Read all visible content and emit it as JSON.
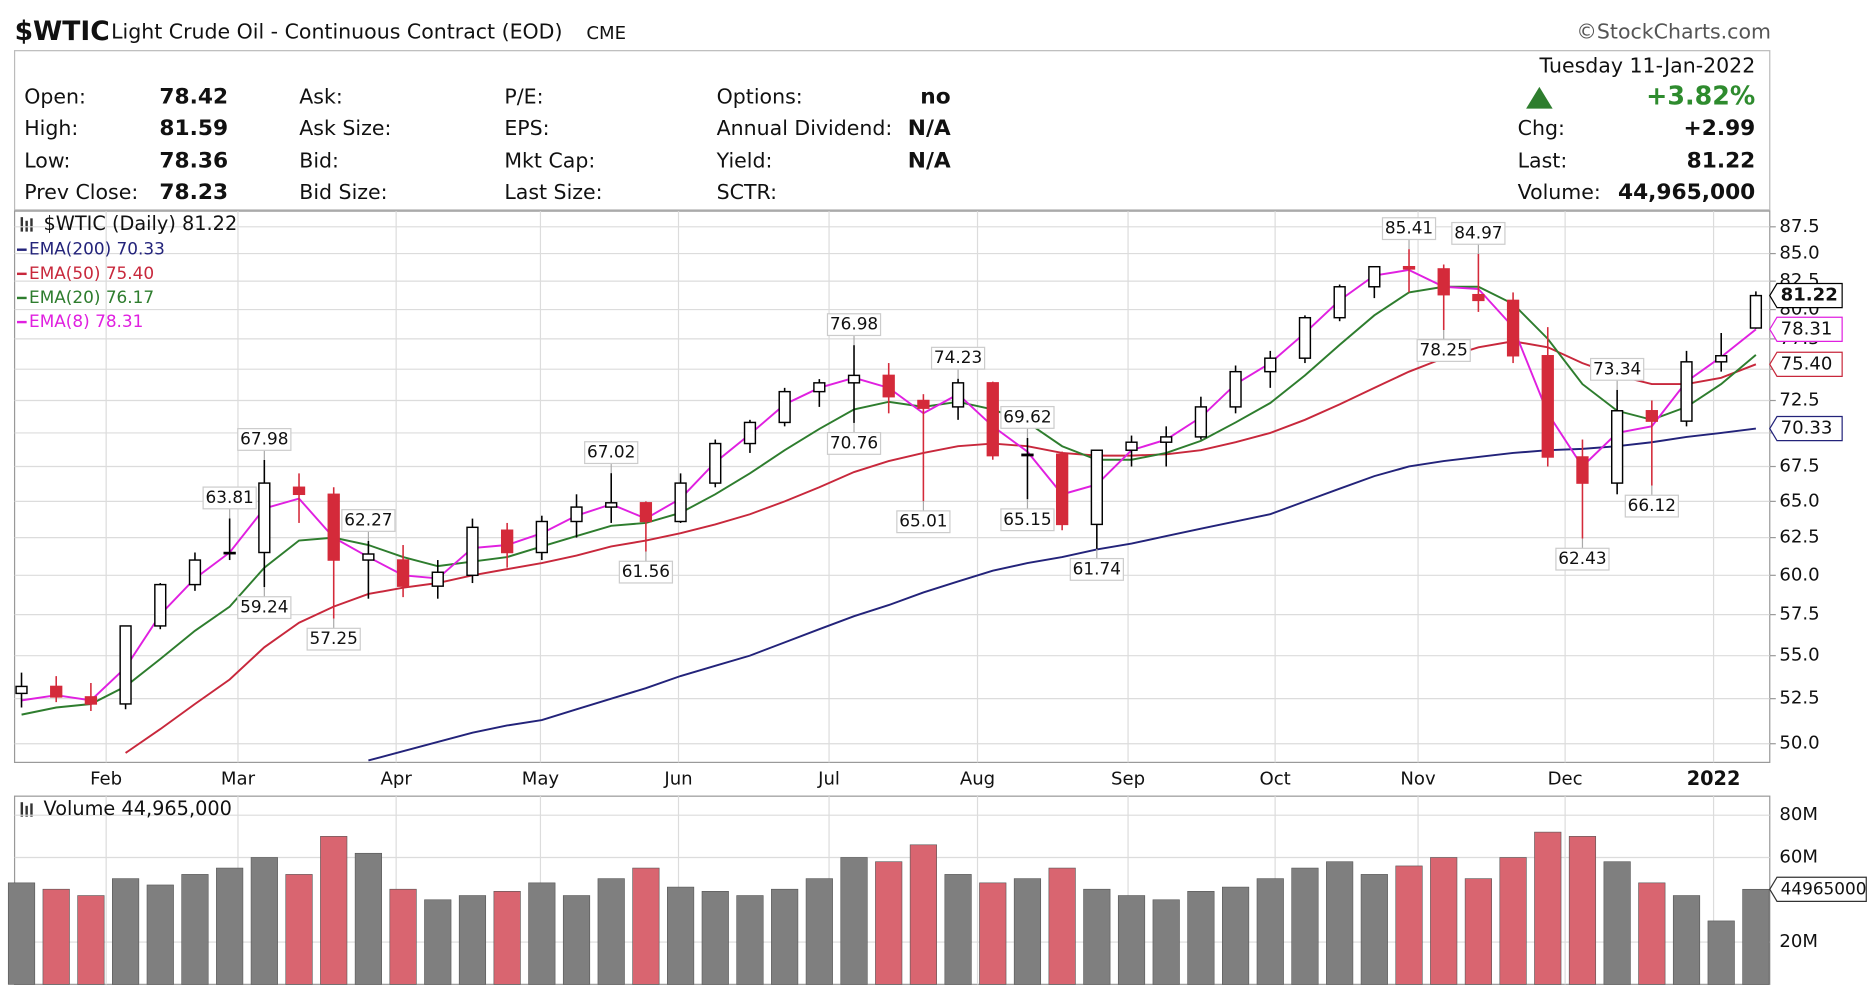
{
  "header": {
    "symbol": "$WTIC",
    "name": "Light Crude Oil - Continuous Contract (EOD)",
    "exchange": "CME",
    "credit": "©StockCharts.com"
  },
  "quote": {
    "columns": [
      [
        {
          "label": "Open:",
          "value": "78.42"
        },
        {
          "label": "High:",
          "value": "81.59"
        },
        {
          "label": "Low:",
          "value": "78.36"
        },
        {
          "label": "Prev Close:",
          "value": "78.23"
        }
      ],
      [
        {
          "label": "Ask:"
        },
        {
          "label": "Ask Size:"
        },
        {
          "label": "Bid:"
        },
        {
          "label": "Bid Size:"
        }
      ],
      [
        {
          "label": "P/E:"
        },
        {
          "label": "EPS:"
        },
        {
          "label": "Mkt Cap:"
        },
        {
          "label": "Last Size:"
        }
      ],
      [
        {
          "label": "Options:",
          "value": "no"
        },
        {
          "label": "Annual Dividend:",
          "value": "N/A"
        },
        {
          "label": "Yield:",
          "value": "N/A"
        },
        {
          "label": "SCTR:"
        }
      ]
    ],
    "date": "Tuesday  11-Jan-2022",
    "change_pct": "+3.82%",
    "chg_label": "Chg:",
    "chg": "+2.99",
    "last_label": "Last:",
    "last": "81.22",
    "volume_label": "Volume:",
    "volume": "44,965,000"
  },
  "chart_data": [
    {
      "type": "candlestick",
      "title": "$WTIC (Daily) 81.22",
      "log": true,
      "grid": true,
      "up_color": "#000000",
      "down_color": "#d42a3a",
      "x": [
        1,
        6,
        11,
        16,
        21,
        26,
        31,
        36,
        41,
        46,
        51,
        56,
        61,
        66,
        71,
        76,
        81,
        86,
        91,
        96,
        101,
        106,
        111,
        116,
        121,
        126,
        131,
        136,
        141,
        146,
        151,
        156,
        161,
        166,
        171,
        176,
        181,
        186,
        191,
        196,
        201,
        206,
        211,
        216,
        221,
        226,
        231,
        236,
        241,
        246,
        251
      ],
      "open": [
        52.8,
        53.2,
        52.6,
        52.2,
        56.8,
        59.4,
        61.5,
        61.5,
        66,
        65.5,
        61,
        61,
        59.3,
        60,
        63,
        61.5,
        63.6,
        64.6,
        64.9,
        63.6,
        66.3,
        69.2,
        70.8,
        73.2,
        73.9,
        74.5,
        72.5,
        72,
        73.9,
        68.3,
        68.4,
        63.4,
        68.7,
        69.3,
        69.7,
        72,
        74.8,
        75.9,
        79.3,
        82,
        83.8,
        83.6,
        81.3,
        80.8,
        76.1,
        68.2,
        66.3,
        71.7,
        70.9,
        75.6,
        78.42
      ],
      "high": [
        54,
        53.8,
        53.4,
        56.8,
        59.5,
        61.5,
        63.81,
        67.98,
        67,
        66,
        62.27,
        62,
        61,
        63.8,
        63.5,
        64,
        65.5,
        67.02,
        65,
        67,
        69.5,
        71,
        73.5,
        74.2,
        76.98,
        75.5,
        73,
        74.23,
        74,
        69.62,
        68.6,
        68.7,
        69.8,
        70.5,
        72.8,
        75.3,
        76.5,
        79.5,
        82.2,
        83.5,
        85.41,
        84,
        84.97,
        81.5,
        78.5,
        69.5,
        73.34,
        72.5,
        76.5,
        78,
        81.59
      ],
      "low": [
        52,
        52.3,
        51.8,
        51.9,
        56.6,
        59,
        61,
        59.24,
        63.5,
        57.25,
        58.5,
        58.6,
        58.5,
        59.5,
        60.5,
        61,
        62.5,
        63.5,
        61.56,
        63.5,
        66,
        68.5,
        70.5,
        72,
        70.76,
        71.5,
        65.01,
        71,
        68,
        65.15,
        63,
        61.74,
        67.5,
        67.5,
        69.5,
        71.5,
        73.5,
        75.5,
        79,
        81,
        81.5,
        78.25,
        79.8,
        75.5,
        67.5,
        62.43,
        65.5,
        66.12,
        70.5,
        74.8,
        78.36
      ],
      "close": [
        53.2,
        52.6,
        52.2,
        56.8,
        59.4,
        61,
        61.5,
        66.3,
        65.5,
        61,
        61.4,
        59.3,
        60.2,
        63.2,
        61.5,
        63.6,
        64.6,
        64.9,
        63.6,
        66.3,
        69.2,
        70.8,
        73.2,
        73.9,
        74.5,
        72.8,
        71.9,
        73.9,
        68.3,
        68.4,
        63.4,
        68.7,
        69.3,
        69.7,
        72,
        74.8,
        75.9,
        79.3,
        82,
        83.8,
        83.6,
        81.3,
        80.8,
        76.1,
        68.2,
        66.3,
        71.7,
        70.9,
        75.6,
        76.1,
        81.22
      ],
      "series": [
        {
          "name": "EMA(200) 70.33",
          "last_label": "70.33",
          "color": "#23237a",
          "values": [
            null,
            null,
            null,
            null,
            null,
            null,
            null,
            null,
            null,
            null,
            49.1,
            49.6,
            50.1,
            50.6,
            51.0,
            51.3,
            51.9,
            52.5,
            53.1,
            53.8,
            54.4,
            55.0,
            55.8,
            56.6,
            57.4,
            58.1,
            58.9,
            59.6,
            60.3,
            60.8,
            61.2,
            61.7,
            62.1,
            62.6,
            63.1,
            63.6,
            64.1,
            65.0,
            65.9,
            66.8,
            67.5,
            67.9,
            68.2,
            68.5,
            68.7,
            68.8,
            69.0,
            69.3,
            69.7,
            70.0,
            70.33
          ]
        },
        {
          "name": "EMA(50) 75.40",
          "last_label": "75.40",
          "color": "#c8283c",
          "values": [
            null,
            null,
            null,
            49.5,
            50.8,
            52.2,
            53.6,
            55.5,
            57.0,
            58.0,
            58.8,
            59.2,
            59.5,
            60.0,
            60.4,
            60.8,
            61.3,
            61.9,
            62.3,
            62.8,
            63.4,
            64.1,
            65.0,
            66.0,
            67.1,
            67.9,
            68.5,
            69.0,
            69.2,
            69.0,
            68.5,
            68.3,
            68.3,
            68.4,
            68.7,
            69.3,
            70.0,
            71.0,
            72.2,
            73.5,
            74.8,
            75.9,
            76.8,
            77.3,
            76.8,
            75.5,
            74.5,
            73.8,
            73.8,
            74.3,
            75.4
          ]
        },
        {
          "name": "EMA(20) 76.17",
          "color": "#2e7d2e",
          "values": [
            51.6,
            52.0,
            52.2,
            53.2,
            54.8,
            56.5,
            58.0,
            60.5,
            62.3,
            62.5,
            62.0,
            61.2,
            60.6,
            60.9,
            61.2,
            61.9,
            62.6,
            63.3,
            63.5,
            64.2,
            65.5,
            67.0,
            68.7,
            70.3,
            71.8,
            72.4,
            72.0,
            72.4,
            71.8,
            70.8,
            69.0,
            68.0,
            68.0,
            68.5,
            69.4,
            70.8,
            72.3,
            74.5,
            77.0,
            79.5,
            81.5,
            82.0,
            82.0,
            80.5,
            77.5,
            73.8,
            71.7,
            71.0,
            72.0,
            73.8,
            76.17
          ]
        },
        {
          "name": "EMA(8) 78.31",
          "last_label": "78.31",
          "color": "#e020e0",
          "values": [
            52.4,
            52.7,
            52.4,
            54.3,
            57.5,
            59.8,
            61.5,
            64.5,
            65.2,
            62.5,
            61.2,
            60.0,
            59.8,
            61.8,
            62.0,
            62.8,
            64.0,
            64.8,
            63.8,
            65.2,
            67.8,
            69.9,
            72.2,
            73.5,
            74.3,
            73.5,
            71.5,
            73.0,
            70.5,
            68.6,
            65.5,
            66.2,
            68.7,
            69.5,
            71.2,
            73.8,
            75.5,
            78.0,
            80.8,
            83.0,
            83.5,
            82.0,
            81.8,
            78.5,
            71.5,
            67.5,
            70.0,
            70.5,
            74.0,
            76.0,
            78.31
          ]
        }
      ],
      "annotations": [
        {
          "x": 31,
          "value": 63.81,
          "side": "above"
        },
        {
          "x": 36,
          "value": 67.98,
          "side": "above"
        },
        {
          "x": 36,
          "value": 59.24,
          "side": "below"
        },
        {
          "x": 46,
          "value": 57.25,
          "side": "below"
        },
        {
          "x": 51,
          "value": 62.27,
          "side": "above"
        },
        {
          "x": 86,
          "value": 67.02,
          "side": "above"
        },
        {
          "x": 91,
          "value": 61.56,
          "side": "below"
        },
        {
          "x": 121,
          "value": 76.98,
          "side": "above"
        },
        {
          "x": 121,
          "value": 70.76,
          "side": "below"
        },
        {
          "x": 131,
          "value": 65.01,
          "side": "below"
        },
        {
          "x": 136,
          "value": 74.23,
          "side": "above"
        },
        {
          "x": 146,
          "value": 69.62,
          "side": "above"
        },
        {
          "x": 146,
          "value": 65.15,
          "side": "below"
        },
        {
          "x": 156,
          "value": 61.74,
          "side": "below"
        },
        {
          "x": 201,
          "value": 85.41,
          "side": "above"
        },
        {
          "x": 206,
          "value": 78.25,
          "side": "below"
        },
        {
          "x": 211,
          "value": 84.97,
          "side": "above"
        },
        {
          "x": 231,
          "value": 73.34,
          "side": "above"
        },
        {
          "x": 226,
          "value": 62.43,
          "side": "below"
        },
        {
          "x": 236,
          "value": 66.12,
          "side": "below"
        }
      ],
      "xlim": [
        0,
        253
      ],
      "xticks": [
        {
          "value": 13.2,
          "label": "Feb"
        },
        {
          "value": 32.2,
          "label": "Mar"
        },
        {
          "value": 55,
          "label": "Apr"
        },
        {
          "value": 75.8,
          "label": "May"
        },
        {
          "value": 95.7,
          "label": "Jun"
        },
        {
          "value": 117.4,
          "label": "Jul"
        },
        {
          "value": 138.8,
          "label": "Aug"
        },
        {
          "value": 160.5,
          "label": "Sep"
        },
        {
          "value": 181.7,
          "label": "Oct"
        },
        {
          "value": 202.3,
          "label": "Nov"
        },
        {
          "value": 223.5,
          "label": "Dec"
        },
        {
          "value": 244.9,
          "label": "2022"
        }
      ],
      "ylim": [
        49,
        89
      ],
      "yticks": [
        {
          "value": 50,
          "label": "50.0"
        },
        52.5,
        {
          "value": 55,
          "label": "55.0"
        },
        57.5,
        {
          "value": 60,
          "label": "60.0"
        },
        62.5,
        {
          "value": 65,
          "label": "65.0"
        },
        67.5,
        {
          "value": 70,
          "label": "70.0"
        },
        72.5,
        {
          "value": 75,
          "label": "75.0"
        },
        77.5,
        {
          "value": 80,
          "label": "80.0"
        },
        82.5,
        {
          "value": 85,
          "label": "85.0"
        },
        87.5
      ]
    },
    {
      "type": "bar",
      "title": "Volume 44,965,000",
      "up_color": "#7f7f7f",
      "down_color": "#d96570",
      "grid": true,
      "x": [
        1,
        6,
        11,
        16,
        21,
        26,
        31,
        36,
        41,
        46,
        51,
        56,
        61,
        66,
        71,
        76,
        81,
        86,
        91,
        96,
        101,
        106,
        111,
        116,
        121,
        126,
        131,
        136,
        141,
        146,
        151,
        156,
        161,
        166,
        171,
        176,
        181,
        186,
        191,
        196,
        201,
        206,
        211,
        216,
        221,
        226,
        231,
        236,
        241,
        246,
        251
      ],
      "values": [
        48000000,
        45000000,
        42000000,
        50000000,
        47000000,
        52000000,
        55000000,
        60000000,
        52000000,
        70000000,
        62000000,
        45000000,
        40000000,
        42000000,
        44000000,
        48000000,
        42000000,
        50000000,
        55000000,
        46000000,
        44000000,
        42000000,
        45000000,
        50000000,
        60000000,
        58000000,
        66000000,
        52000000,
        48000000,
        50000000,
        55000000,
        45000000,
        42000000,
        40000000,
        44000000,
        46000000,
        50000000,
        55000000,
        58000000,
        52000000,
        56000000,
        60000000,
        50000000,
        60000000,
        72000000,
        70000000,
        58000000,
        48000000,
        42000000,
        30000000,
        44965000
      ],
      "xlim": [
        0,
        253
      ],
      "ylim": [
        0,
        89000000
      ],
      "yticks": [
        {
          "value": 20000000,
          "label": "20M"
        },
        {
          "value": 60000000,
          "label": "60M"
        },
        {
          "value": 80000000,
          "label": "80M"
        }
      ]
    }
  ]
}
